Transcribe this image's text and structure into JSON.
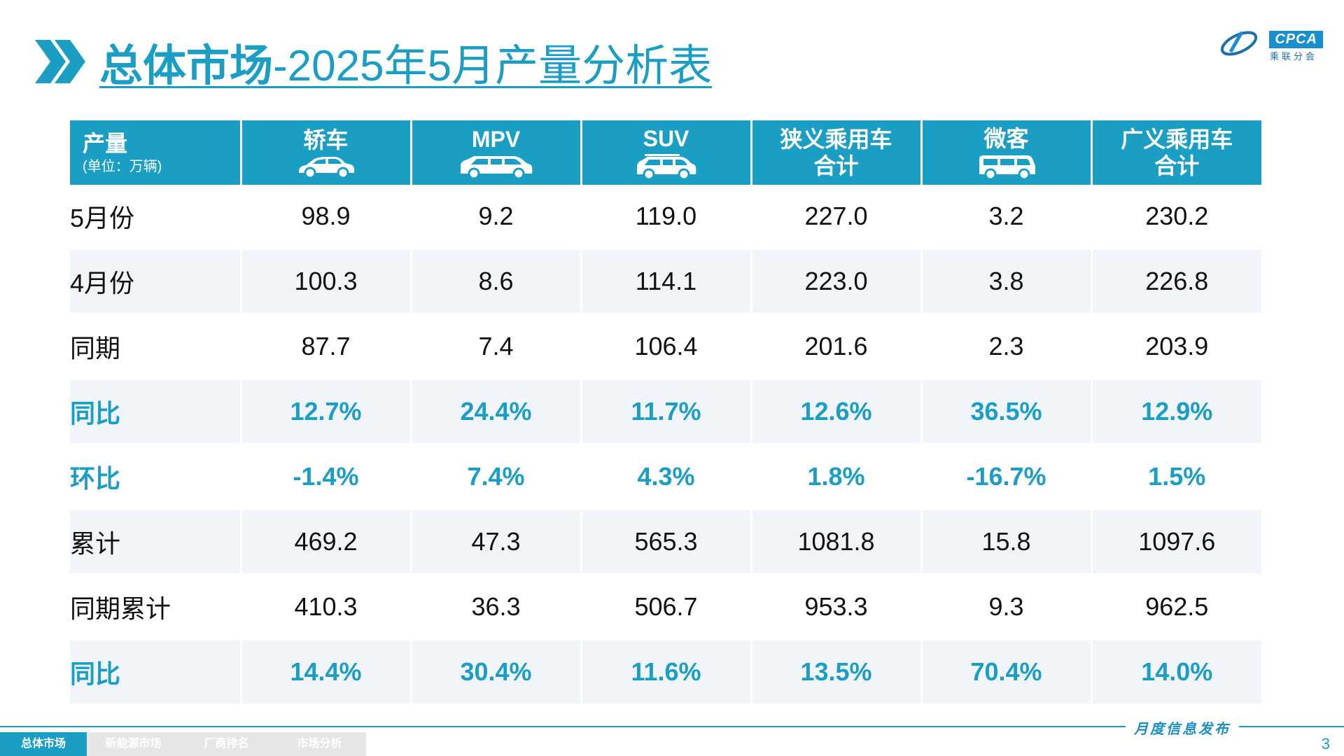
{
  "header": {
    "title_strong": "总体市场",
    "title_rest": "-2025年5月产量分析表"
  },
  "logo": {
    "text": "CPCA",
    "subtext": "乘联分会"
  },
  "table": {
    "corner_label": "产量",
    "corner_unit": "(单位：万辆)",
    "columns": [
      {
        "label": "轿车",
        "icon": "sedan-icon"
      },
      {
        "label": "MPV",
        "icon": "mpv-icon"
      },
      {
        "label": "SUV",
        "icon": "suv-icon"
      },
      {
        "label": "狭义乘用车\n合计",
        "line1": "狭义乘用车",
        "line2": "合计"
      },
      {
        "label": "微客",
        "icon": "minivan-icon"
      },
      {
        "label": "广义乘用车\n合计",
        "line1": "广义乘用车",
        "line2": "合计"
      }
    ],
    "rows": [
      {
        "label": "5月份",
        "values": [
          "98.9",
          "9.2",
          "119.0",
          "227.0",
          "3.2",
          "230.2"
        ],
        "style": "plain"
      },
      {
        "label": "4月份",
        "values": [
          "100.3",
          "8.6",
          "114.1",
          "223.0",
          "3.8",
          "226.8"
        ],
        "style": "plain"
      },
      {
        "label": "同期",
        "values": [
          "87.7",
          "7.4",
          "106.4",
          "201.6",
          "2.3",
          "203.9"
        ],
        "style": "plain"
      },
      {
        "label": "同比",
        "values": [
          "12.7%",
          "24.4%",
          "11.7%",
          "12.6%",
          "36.5%",
          "12.9%"
        ],
        "style": "pct"
      },
      {
        "label": "环比",
        "values": [
          "-1.4%",
          "7.4%",
          "4.3%",
          "1.8%",
          "-16.7%",
          "1.5%"
        ],
        "style": "pct"
      },
      {
        "label": "累计",
        "values": [
          "469.2",
          "47.3",
          "565.3",
          "1081.8",
          "15.8",
          "1097.6"
        ],
        "style": "plain"
      },
      {
        "label": "同期累计",
        "values": [
          "410.3",
          "36.3",
          "506.7",
          "953.3",
          "9.3",
          "962.5"
        ],
        "style": "plain"
      },
      {
        "label": "同比",
        "values": [
          "14.4%",
          "30.4%",
          "11.6%",
          "13.5%",
          "70.4%",
          "14.0%"
        ],
        "style": "pct"
      }
    ]
  },
  "footer": {
    "publish_label": "月度信息发布",
    "tabs": [
      "总体市场",
      "新能源市场",
      "厂商排名",
      "市场分析"
    ],
    "page_number": "3"
  },
  "colors": {
    "accent": "#1a9ec4",
    "header_bg": "#1a9ec4",
    "row_alt": "#f1f5fa"
  }
}
